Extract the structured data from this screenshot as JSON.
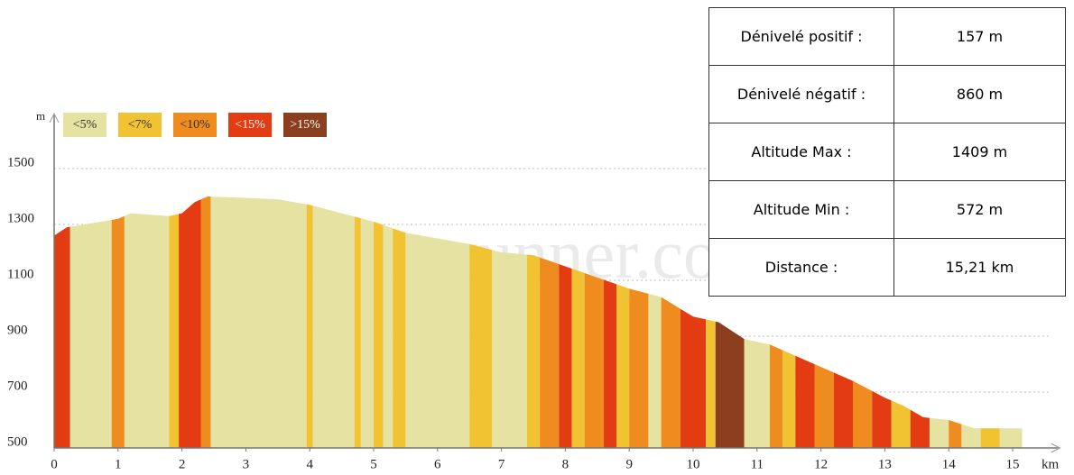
{
  "chart_data": {
    "type": "profile",
    "x_label": "km",
    "y_label": "m",
    "watermark": "runner.com",
    "x": [
      0,
      0.2,
      1.0,
      1.2,
      1.8,
      2.0,
      2.2,
      2.4,
      3.0,
      3.5,
      4.0,
      4.5,
      5.0,
      5.5,
      6.0,
      6.5,
      7.0,
      7.5,
      8.0,
      8.5,
      9.0,
      9.5,
      10.0,
      10.4,
      10.8,
      11.2,
      11.5,
      12.0,
      12.5,
      13.0,
      13.3,
      13.6,
      14.0,
      14.4,
      14.8,
      15.15
    ],
    "values": [
      1260,
      1290,
      1320,
      1340,
      1330,
      1340,
      1380,
      1400,
      1395,
      1390,
      1370,
      1340,
      1310,
      1270,
      1250,
      1230,
      1200,
      1190,
      1150,
      1110,
      1070,
      1040,
      970,
      950,
      890,
      870,
      840,
      790,
      740,
      680,
      650,
      610,
      600,
      570,
      570,
      570
    ],
    "legend": [
      {
        "name": "<5%",
        "color": "#e6e2a2"
      },
      {
        "name": "<7%",
        "color": "#f1c232"
      },
      {
        "name": "<10%",
        "color": "#ef8c1f"
      },
      {
        "name": "<15%",
        "color": "#e43c12"
      },
      {
        "name": ">15%",
        "color": "#8c3f1e"
      }
    ],
    "bands": {
      "edges": [
        0,
        0.25,
        0.9,
        1.1,
        1.8,
        1.95,
        2.3,
        2.45,
        3.95,
        4.05,
        4.7,
        4.8,
        5.0,
        5.15,
        5.3,
        5.5,
        6.5,
        6.85,
        7.4,
        7.6,
        7.9,
        8.1,
        8.3,
        8.6,
        8.8,
        9.0,
        9.3,
        9.5,
        9.8,
        10.2,
        10.35,
        10.8,
        11.2,
        11.4,
        11.6,
        11.9,
        12.2,
        12.5,
        12.8,
        13.1,
        13.4,
        13.7,
        14.0,
        14.2,
        14.5,
        14.8,
        15.15
      ],
      "class": [
        3,
        0,
        2,
        0,
        1,
        3,
        2,
        0,
        1,
        0,
        1,
        0,
        1,
        0,
        1,
        0,
        1,
        0,
        1,
        2,
        3,
        1,
        2,
        3,
        1,
        2,
        0,
        2,
        3,
        1,
        4,
        0,
        2,
        1,
        3,
        2,
        3,
        2,
        3,
        1,
        3,
        0,
        2,
        0,
        1,
        0
      ]
    },
    "xlim": [
      0,
      15.6
    ],
    "ylim": [
      500,
      1600
    ],
    "xticks": [
      0,
      1,
      2,
      3,
      4,
      5,
      6,
      7,
      8,
      9,
      10,
      11,
      12,
      13,
      14,
      15
    ],
    "yticks": [
      500,
      700,
      900,
      1100,
      1300,
      1500
    ],
    "grid": true
  },
  "table": {
    "rows": [
      [
        "Dénivelé positif :",
        "157 m"
      ],
      [
        "Dénivelé négatif :",
        "860 m"
      ],
      [
        "Altitude Max :",
        "1409 m"
      ],
      [
        "Altitude Min :",
        "572 m"
      ],
      [
        "Distance :",
        "15,21 km"
      ]
    ]
  }
}
